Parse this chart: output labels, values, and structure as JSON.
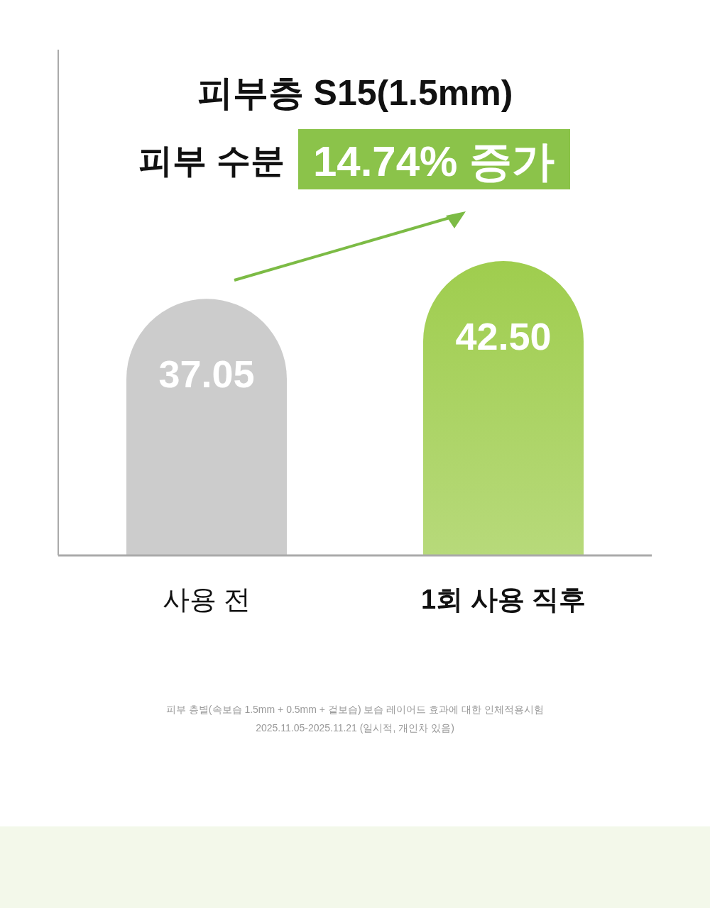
{
  "chart_data": {
    "type": "bar",
    "title": "피부층 S15(1.5mm)",
    "subtitle": "피부 수분",
    "categories": [
      "사용 전",
      "1회 사용 직후"
    ],
    "values": [
      37.05,
      42.5
    ],
    "colors": [
      "#cccccc",
      "#9fcd4e"
    ],
    "value_labels": [
      "37.05",
      "42.50"
    ],
    "annotations": [
      "14.74% 증가",
      "피부 층별(속보습 1.5mm + 0.5mm + 겉보습) 보습 레이어드 효과에 대한 인체적용시험",
      "2025.11.05-2025.11.21 (일시적, 개인차 있음)"
    ]
  }
}
